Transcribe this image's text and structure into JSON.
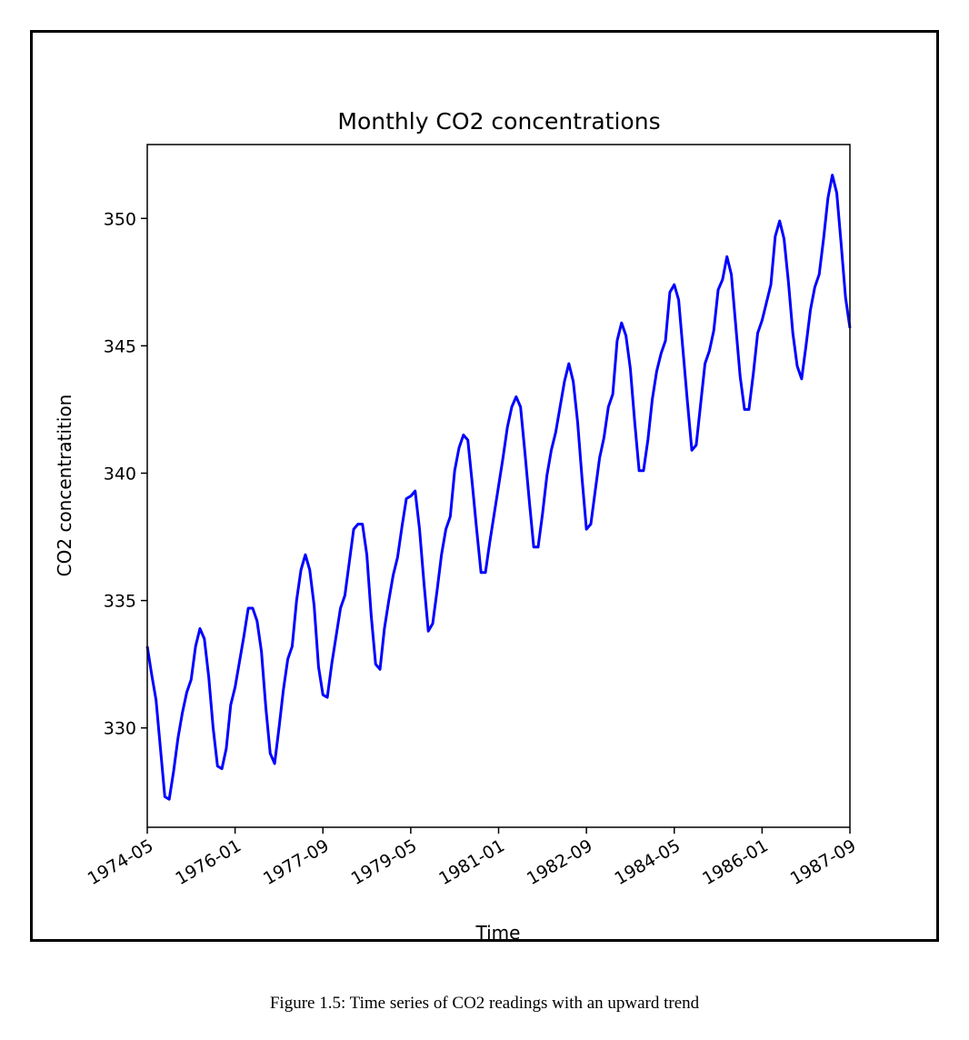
{
  "caption": "Figure 1.5: Time series of CO2 readings with an upward trend",
  "chart_data": {
    "type": "line",
    "title": "Monthly CO2 concentrations",
    "xlabel": "Time",
    "ylabel": "CO2 concentratition",
    "x_ticks": [
      "1974-05",
      "1976-01",
      "1977-09",
      "1979-05",
      "1981-01",
      "1982-09",
      "1984-05",
      "1986-01",
      "1987-09"
    ],
    "y_ticks": [
      330,
      335,
      340,
      345,
      350
    ],
    "xlim": [
      "1974-05",
      "1987-09"
    ],
    "ylim": [
      326.1,
      352.9
    ],
    "grid": false,
    "line_color": "#0000ff",
    "series": [
      {
        "x": [
          "1974-05",
          "1974-06",
          "1974-07",
          "1974-08",
          "1974-09",
          "1974-10",
          "1974-11",
          "1974-12",
          "1975-01",
          "1975-02",
          "1975-03",
          "1975-04",
          "1975-05",
          "1975-06",
          "1975-07",
          "1975-08",
          "1975-09",
          "1975-10",
          "1975-11",
          "1975-12",
          "1976-01",
          "1976-02",
          "1976-03",
          "1976-04",
          "1976-05",
          "1976-06",
          "1976-07",
          "1976-08",
          "1976-09",
          "1976-10",
          "1976-11",
          "1976-12",
          "1977-01",
          "1977-02",
          "1977-03",
          "1977-04",
          "1977-05",
          "1977-06",
          "1977-07",
          "1977-08",
          "1977-09",
          "1977-10",
          "1977-11",
          "1977-12",
          "1978-01",
          "1978-02",
          "1978-03",
          "1978-04",
          "1978-05",
          "1978-06",
          "1978-07",
          "1978-08",
          "1978-09",
          "1978-10",
          "1978-11",
          "1978-12",
          "1979-01",
          "1979-02",
          "1979-03",
          "1979-04",
          "1979-05",
          "1979-06",
          "1979-07",
          "1979-08",
          "1979-09",
          "1979-10",
          "1979-11",
          "1979-12",
          "1980-01",
          "1980-02",
          "1980-03",
          "1980-04",
          "1980-05",
          "1980-06",
          "1980-07",
          "1980-08",
          "1980-09",
          "1980-10",
          "1980-11",
          "1980-12",
          "1981-01",
          "1981-02",
          "1981-03",
          "1981-04",
          "1981-05",
          "1981-06",
          "1981-07",
          "1981-08",
          "1981-09",
          "1981-10",
          "1981-11",
          "1981-12",
          "1982-01",
          "1982-02",
          "1982-03",
          "1982-04",
          "1982-05",
          "1982-06",
          "1982-07",
          "1982-08",
          "1982-09",
          "1982-10",
          "1982-11",
          "1982-12",
          "1983-01",
          "1983-02",
          "1983-03",
          "1983-04",
          "1983-05",
          "1983-06",
          "1983-07",
          "1983-08",
          "1983-09",
          "1983-10",
          "1983-11",
          "1983-12",
          "1984-01",
          "1984-02",
          "1984-03",
          "1984-04",
          "1984-05",
          "1984-06",
          "1984-07",
          "1984-08",
          "1984-09",
          "1984-10",
          "1984-11",
          "1984-12",
          "1985-01",
          "1985-02",
          "1985-03",
          "1985-04",
          "1985-05",
          "1985-06",
          "1985-07",
          "1985-08",
          "1985-09",
          "1985-10",
          "1985-11",
          "1985-12",
          "1986-01",
          "1986-02",
          "1986-03",
          "1986-04",
          "1986-05",
          "1986-06",
          "1986-07",
          "1986-08",
          "1986-09",
          "1986-10",
          "1986-11",
          "1986-12",
          "1987-01",
          "1987-02",
          "1987-03",
          "1987-04",
          "1987-05",
          "1987-06",
          "1987-07",
          "1987-08",
          "1987-09"
        ],
        "values": [
          333.2,
          332.1,
          331.1,
          329.2,
          327.3,
          327.2,
          328.3,
          329.6,
          330.6,
          331.4,
          331.9,
          333.2,
          333.9,
          333.5,
          332.0,
          330.0,
          328.5,
          328.4,
          329.2,
          330.9,
          331.6,
          332.6,
          333.6,
          334.7,
          334.7,
          334.2,
          333.0,
          330.8,
          329.0,
          328.6,
          330.0,
          331.5,
          332.7,
          333.2,
          335.0,
          336.2,
          336.8,
          336.2,
          334.8,
          332.4,
          331.3,
          331.2,
          332.5,
          333.6,
          334.7,
          335.2,
          336.5,
          337.8,
          338.0,
          338.0,
          336.8,
          334.4,
          332.5,
          332.3,
          333.9,
          335.0,
          336.0,
          336.7,
          337.9,
          339.0,
          339.1,
          339.3,
          337.8,
          335.7,
          333.8,
          334.1,
          335.4,
          336.8,
          337.8,
          338.3,
          340.1,
          341.0,
          341.5,
          341.3,
          339.6,
          337.8,
          336.1,
          336.1,
          337.3,
          338.4,
          339.5,
          340.6,
          341.8,
          342.6,
          343.0,
          342.6,
          340.8,
          338.9,
          337.1,
          337.1,
          338.4,
          339.9,
          340.9,
          341.6,
          342.6,
          343.6,
          344.3,
          343.6,
          342.0,
          339.8,
          337.8,
          338.0,
          339.3,
          340.6,
          341.4,
          342.6,
          343.1,
          345.2,
          345.9,
          345.4,
          344.1,
          342.0,
          340.1,
          340.1,
          341.3,
          342.9,
          344.0,
          344.7,
          345.2,
          347.1,
          347.4,
          346.8,
          344.8,
          342.8,
          340.9,
          341.1,
          342.7,
          344.3,
          344.8,
          345.6,
          347.2,
          347.6,
          348.5,
          347.8,
          345.8,
          343.8,
          342.5,
          342.5,
          343.9,
          345.5,
          346.0,
          346.7,
          347.4,
          349.3,
          349.9,
          349.2,
          347.5,
          345.5,
          344.2,
          343.7,
          345.0,
          346.4,
          347.3,
          347.8,
          349.2,
          350.8,
          351.7,
          351.0,
          349.0,
          346.9,
          345.7
        ]
      }
    ]
  }
}
